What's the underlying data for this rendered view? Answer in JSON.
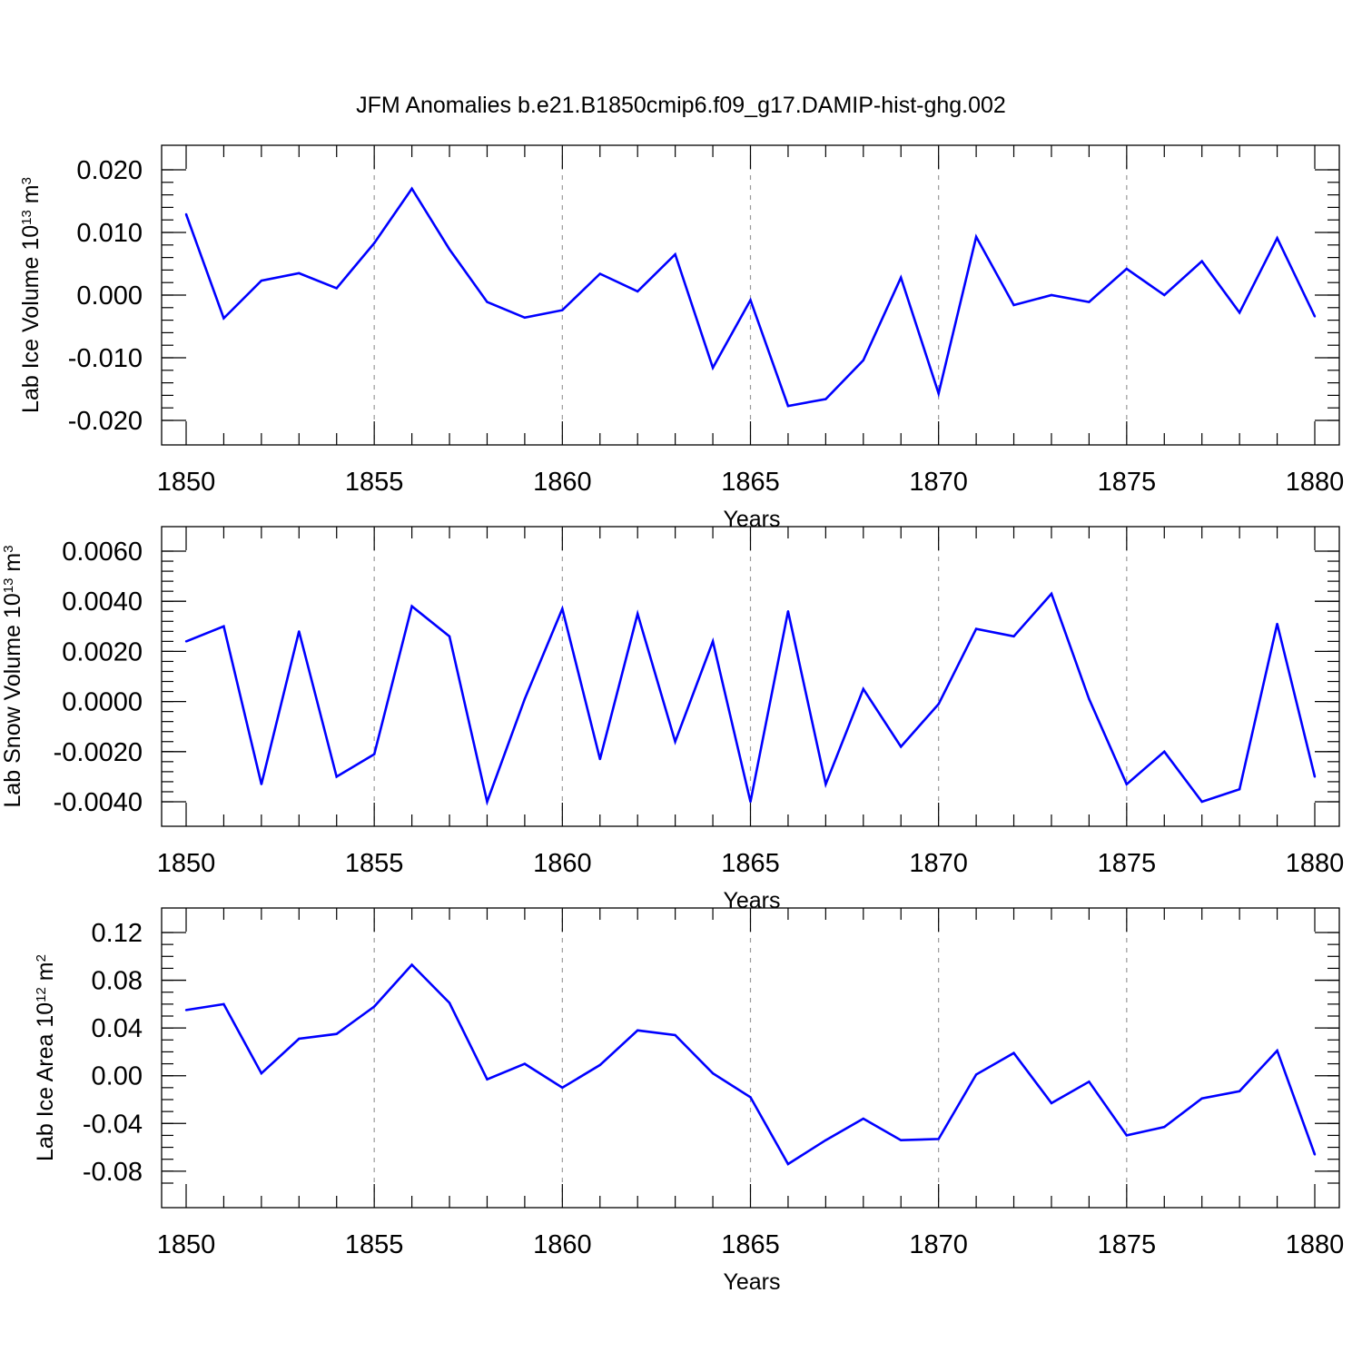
{
  "figure": {
    "title": "JFM Anomalies b.e21.B1850cmip6.f09_g17.DAMIP-hist-ghg.002"
  },
  "colors": {
    "series": "#0000ff",
    "axis": "#000000",
    "grid": "#999999"
  },
  "chart_data": [
    {
      "type": "line",
      "xlabel": "Years",
      "ylabel": {
        "base": "Lab Ice Volume 10",
        "exp": "13",
        "unit": " m",
        "unit_exp": "3"
      },
      "xlim": [
        1850,
        1880
      ],
      "ylim": [
        -0.02,
        0.02
      ],
      "x_ticks": [
        "1850",
        "1855",
        "1860",
        "1865",
        "1870",
        "1875",
        "1880"
      ],
      "y_ticks": [
        {
          "value": 0.02,
          "label": "0.020"
        },
        {
          "value": 0.01,
          "label": "0.010"
        },
        {
          "value": 0.0,
          "label": "0.000"
        },
        {
          "value": -0.01,
          "label": "-0.010"
        },
        {
          "value": -0.02,
          "label": "-0.020"
        }
      ],
      "y_minor_step": 0.002,
      "vertical_grid": [
        1855,
        1860,
        1865,
        1870,
        1875
      ],
      "x": [
        1850,
        1851,
        1852,
        1853,
        1854,
        1855,
        1856,
        1857,
        1858,
        1859,
        1860,
        1861,
        1862,
        1863,
        1864,
        1865,
        1866,
        1867,
        1868,
        1869,
        1870,
        1871,
        1872,
        1873,
        1874,
        1875,
        1876,
        1877,
        1878,
        1879,
        1880
      ],
      "values": [
        0.0129,
        -0.0037,
        0.0023,
        0.0035,
        0.0011,
        0.0083,
        0.017,
        0.0073,
        -0.0011,
        -0.0036,
        -0.0024,
        0.0034,
        0.0006,
        0.0065,
        -0.0116,
        -0.0008,
        -0.0177,
        -0.0166,
        -0.0104,
        0.0028,
        -0.0157,
        0.0093,
        -0.0016,
        0.0,
        -0.0011,
        0.0042,
        0.0,
        0.0054,
        -0.0028,
        0.0091,
        -0.0034
      ]
    },
    {
      "type": "line",
      "xlabel": "Years",
      "ylabel": {
        "base": "Lab Snow Volume 10",
        "exp": "13",
        "unit": " m",
        "unit_exp": "3"
      },
      "xlim": [
        1850,
        1880
      ],
      "ylim": [
        -0.004,
        0.006
      ],
      "x_ticks": [
        "1850",
        "1855",
        "1860",
        "1865",
        "1870",
        "1875",
        "1880"
      ],
      "y_ticks": [
        {
          "value": 0.006,
          "label": "0.0060"
        },
        {
          "value": 0.004,
          "label": "0.0040"
        },
        {
          "value": 0.002,
          "label": "0.0020"
        },
        {
          "value": 0.0,
          "label": "0.0000"
        },
        {
          "value": -0.002,
          "label": "-0.0020"
        },
        {
          "value": -0.004,
          "label": "-0.0040"
        }
      ],
      "y_minor_step": 0.0004,
      "vertical_grid": [
        1855,
        1860,
        1865,
        1870,
        1875
      ],
      "x": [
        1850,
        1851,
        1852,
        1853,
        1854,
        1855,
        1856,
        1857,
        1858,
        1859,
        1860,
        1861,
        1862,
        1863,
        1864,
        1865,
        1866,
        1867,
        1868,
        1869,
        1870,
        1871,
        1872,
        1873,
        1874,
        1875,
        1876,
        1877,
        1878,
        1879,
        1880
      ],
      "values": [
        0.0024,
        0.003,
        -0.0033,
        0.0028,
        -0.003,
        -0.0021,
        0.0038,
        0.0026,
        -0.004,
        0.0001,
        0.0037,
        -0.0023,
        0.0035,
        -0.0016,
        0.0024,
        -0.004,
        0.0036,
        -0.0033,
        0.0005,
        -0.0018,
        -0.0001,
        0.0029,
        0.0026,
        0.0043,
        0.0001,
        -0.0033,
        -0.002,
        -0.004,
        -0.0035,
        0.0031,
        -0.003
      ]
    },
    {
      "type": "line",
      "xlabel": "Years",
      "ylabel": {
        "base": "Lab Ice Area 10",
        "exp": "12",
        "unit": " m",
        "unit_exp": "2"
      },
      "xlim": [
        1850,
        1880
      ],
      "ylim": [
        -0.09,
        0.12
      ],
      "x_ticks": [
        "1850",
        "1855",
        "1860",
        "1865",
        "1870",
        "1875",
        "1880"
      ],
      "y_ticks": [
        {
          "value": 0.12,
          "label": "0.12"
        },
        {
          "value": 0.08,
          "label": "0.08"
        },
        {
          "value": 0.04,
          "label": "0.04"
        },
        {
          "value": 0.0,
          "label": "0.00"
        },
        {
          "value": -0.04,
          "label": "-0.04"
        },
        {
          "value": -0.08,
          "label": "-0.08"
        }
      ],
      "y_minor_step": 0.01,
      "vertical_grid": [
        1855,
        1860,
        1865,
        1870,
        1875
      ],
      "x": [
        1850,
        1851,
        1852,
        1853,
        1854,
        1855,
        1856,
        1857,
        1858,
        1859,
        1860,
        1861,
        1862,
        1863,
        1864,
        1865,
        1866,
        1867,
        1868,
        1869,
        1870,
        1871,
        1872,
        1873,
        1874,
        1875,
        1876,
        1877,
        1878,
        1879,
        1880
      ],
      "values": [
        0.055,
        0.06,
        0.002,
        0.031,
        0.035,
        0.058,
        0.093,
        0.061,
        -0.003,
        0.01,
        -0.01,
        0.009,
        0.038,
        0.034,
        0.002,
        -0.018,
        -0.074,
        -0.054,
        -0.036,
        -0.054,
        -0.053,
        0.001,
        0.019,
        -0.023,
        -0.005,
        -0.05,
        -0.043,
        -0.019,
        -0.013,
        0.021,
        -0.066
      ]
    }
  ]
}
